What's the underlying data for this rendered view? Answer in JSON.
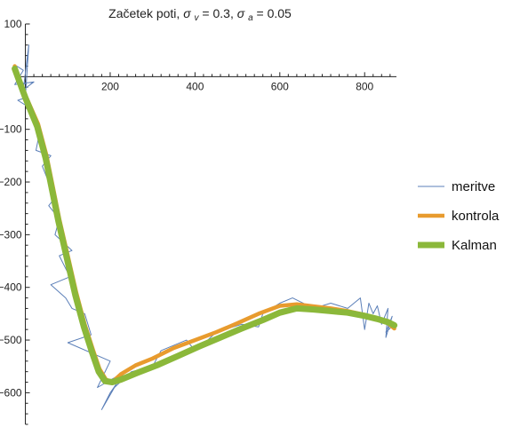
{
  "chart_data": {
    "type": "line",
    "title": "Začetek poti, σv = 0.3, σa = 0.05",
    "title_parts": {
      "prefix": "Začetek poti, ",
      "sym1": "σ",
      "sub1": "v",
      "mid": " = 0.3, ",
      "sym2": "σ",
      "sub2": "a",
      "suffix": " = 0.05"
    },
    "xlabel": "",
    "ylabel": "",
    "xlim": [
      -20,
      875
    ],
    "ylim": [
      -660,
      100
    ],
    "x_ticks": [
      200,
      400,
      600,
      800
    ],
    "y_ticks": [
      100,
      -100,
      -200,
      -300,
      -400,
      -500,
      -600
    ],
    "grid": false,
    "legend_position": "right",
    "series": [
      {
        "name": "meritve",
        "color": "#5b7fb8",
        "points": [
          [
            -20,
            20
          ],
          [
            -5,
            12
          ],
          [
            -25,
            -15
          ],
          [
            20,
            -10
          ],
          [
            -5,
            -25
          ],
          [
            8,
            60
          ],
          [
            0,
            -40
          ],
          [
            -18,
            -45
          ],
          [
            12,
            -60
          ],
          [
            35,
            -100
          ],
          [
            25,
            -140
          ],
          [
            60,
            -150
          ],
          [
            40,
            -170
          ],
          [
            70,
            -230
          ],
          [
            55,
            -245
          ],
          [
            80,
            -270
          ],
          [
            70,
            -300
          ],
          [
            110,
            -330
          ],
          [
            80,
            -340
          ],
          [
            105,
            -380
          ],
          [
            60,
            -395
          ],
          [
            95,
            -420
          ],
          [
            110,
            -440
          ],
          [
            140,
            -450
          ],
          [
            155,
            -490
          ],
          [
            100,
            -505
          ],
          [
            200,
            -540
          ],
          [
            170,
            -590
          ],
          [
            235,
            -560
          ],
          [
            200,
            -600
          ],
          [
            180,
            -632
          ],
          [
            210,
            -590
          ],
          [
            250,
            -560
          ],
          [
            300,
            -550
          ],
          [
            320,
            -520
          ],
          [
            380,
            -500
          ],
          [
            400,
            -520
          ],
          [
            430,
            -500
          ],
          [
            450,
            -485
          ],
          [
            510,
            -470
          ],
          [
            550,
            -475
          ],
          [
            560,
            -450
          ],
          [
            580,
            -440
          ],
          [
            600,
            -430
          ],
          [
            630,
            -420
          ],
          [
            680,
            -440
          ],
          [
            720,
            -430
          ],
          [
            760,
            -440
          ],
          [
            790,
            -420
          ],
          [
            800,
            -480
          ],
          [
            810,
            -430
          ],
          [
            820,
            -450
          ],
          [
            830,
            -435
          ],
          [
            840,
            -470
          ],
          [
            855,
            -440
          ],
          [
            850,
            -495
          ],
          [
            865,
            -455
          ],
          [
            850,
            -485
          ],
          [
            870,
            -470
          ]
        ]
      },
      {
        "name": "kontrola",
        "color": "#e89b2e",
        "points": [
          [
            -25,
            20
          ],
          [
            0,
            -35
          ],
          [
            30,
            -90
          ],
          [
            50,
            -150
          ],
          [
            65,
            -210
          ],
          [
            80,
            -270
          ],
          [
            100,
            -340
          ],
          [
            120,
            -410
          ],
          [
            140,
            -470
          ],
          [
            160,
            -520
          ],
          [
            175,
            -555
          ],
          [
            190,
            -575
          ],
          [
            205,
            -580
          ],
          [
            225,
            -565
          ],
          [
            260,
            -548
          ],
          [
            300,
            -535
          ],
          [
            350,
            -515
          ],
          [
            400,
            -500
          ],
          [
            450,
            -485
          ],
          [
            500,
            -468
          ],
          [
            550,
            -450
          ],
          [
            600,
            -435
          ],
          [
            640,
            -432
          ],
          [
            680,
            -436
          ],
          [
            720,
            -440
          ],
          [
            760,
            -445
          ],
          [
            800,
            -452
          ],
          [
            830,
            -460
          ],
          [
            855,
            -468
          ],
          [
            870,
            -478
          ]
        ]
      },
      {
        "name": "Kalman",
        "color": "#8bb83a",
        "points": [
          [
            -25,
            15
          ],
          [
            0,
            -40
          ],
          [
            28,
            -95
          ],
          [
            48,
            -155
          ],
          [
            63,
            -215
          ],
          [
            78,
            -275
          ],
          [
            98,
            -345
          ],
          [
            118,
            -415
          ],
          [
            138,
            -475
          ],
          [
            158,
            -525
          ],
          [
            173,
            -560
          ],
          [
            188,
            -578
          ],
          [
            205,
            -580
          ],
          [
            225,
            -575
          ],
          [
            265,
            -562
          ],
          [
            310,
            -548
          ],
          [
            360,
            -530
          ],
          [
            410,
            -512
          ],
          [
            460,
            -495
          ],
          [
            510,
            -478
          ],
          [
            560,
            -462
          ],
          [
            600,
            -448
          ],
          [
            640,
            -440
          ],
          [
            680,
            -442
          ],
          [
            720,
            -445
          ],
          [
            760,
            -448
          ],
          [
            800,
            -454
          ],
          [
            830,
            -460
          ],
          [
            855,
            -466
          ],
          [
            870,
            -472
          ]
        ]
      }
    ]
  },
  "legend": {
    "items": [
      {
        "label": "meritve",
        "color": "#5b7fb8"
      },
      {
        "label": "kontrola",
        "color": "#e89b2e"
      },
      {
        "label": "Kalman",
        "color": "#8bb83a"
      }
    ]
  }
}
